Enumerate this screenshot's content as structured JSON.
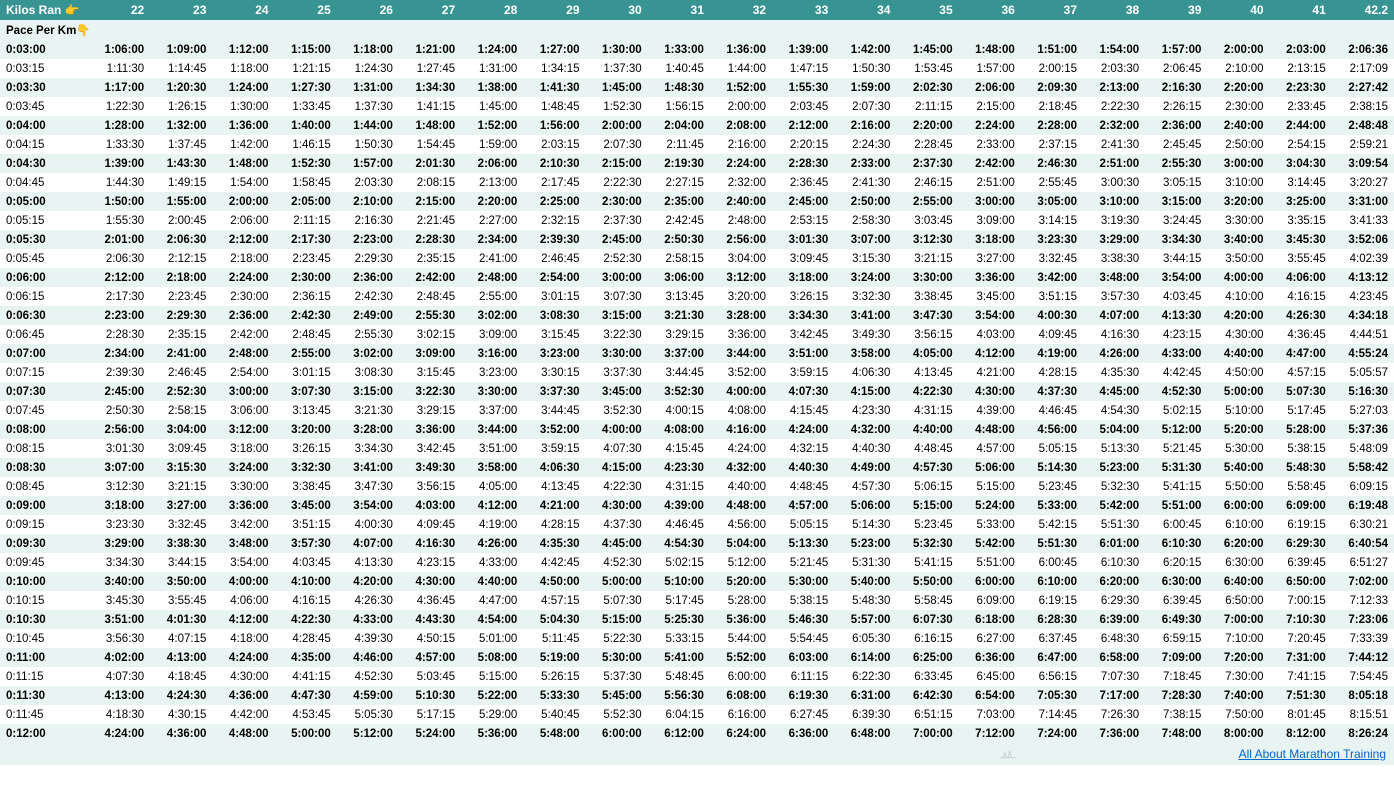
{
  "header": {
    "first_label": "Kilos Ran 👉",
    "columns": [
      "22",
      "23",
      "24",
      "25",
      "26",
      "27",
      "28",
      "29",
      "30",
      "31",
      "32",
      "33",
      "34",
      "35",
      "36",
      "37",
      "38",
      "39",
      "40",
      "41",
      "42.2"
    ]
  },
  "subheader": "Pace Per Km👇",
  "paces": [
    "0:03:00",
    "0:03:15",
    "0:03:30",
    "0:03:45",
    "0:04:00",
    "0:04:15",
    "0:04:30",
    "0:04:45",
    "0:05:00",
    "0:05:15",
    "0:05:30",
    "0:05:45",
    "0:06:00",
    "0:06:15",
    "0:06:30",
    "0:06:45",
    "0:07:00",
    "0:07:15",
    "0:07:30",
    "0:07:45",
    "0:08:00",
    "0:08:15",
    "0:08:30",
    "0:08:45",
    "0:09:00",
    "0:09:15",
    "0:09:30",
    "0:09:45",
    "0:10:00",
    "0:10:15",
    "0:10:30",
    "0:10:45",
    "0:11:00",
    "0:11:15",
    "0:11:30",
    "0:11:45",
    "0:12:00"
  ],
  "distances": [
    22,
    23,
    24,
    25,
    26,
    27,
    28,
    29,
    30,
    31,
    32,
    33,
    34,
    35,
    36,
    37,
    38,
    39,
    40,
    41,
    42.2
  ],
  "pace_seconds": [
    180,
    195,
    210,
    225,
    240,
    255,
    270,
    285,
    300,
    315,
    330,
    345,
    360,
    375,
    390,
    405,
    420,
    435,
    450,
    465,
    480,
    495,
    510,
    525,
    540,
    555,
    570,
    585,
    600,
    615,
    630,
    645,
    660,
    675,
    690,
    705,
    720
  ],
  "colors": {
    "header_bg": "#389493",
    "header_fg": "#ffffff",
    "row_alt_bg": "#e8f4f2",
    "row_bg": "#ffffff",
    "link": "#0066cc"
  },
  "footer_link_text": "All About Marathon Training"
}
